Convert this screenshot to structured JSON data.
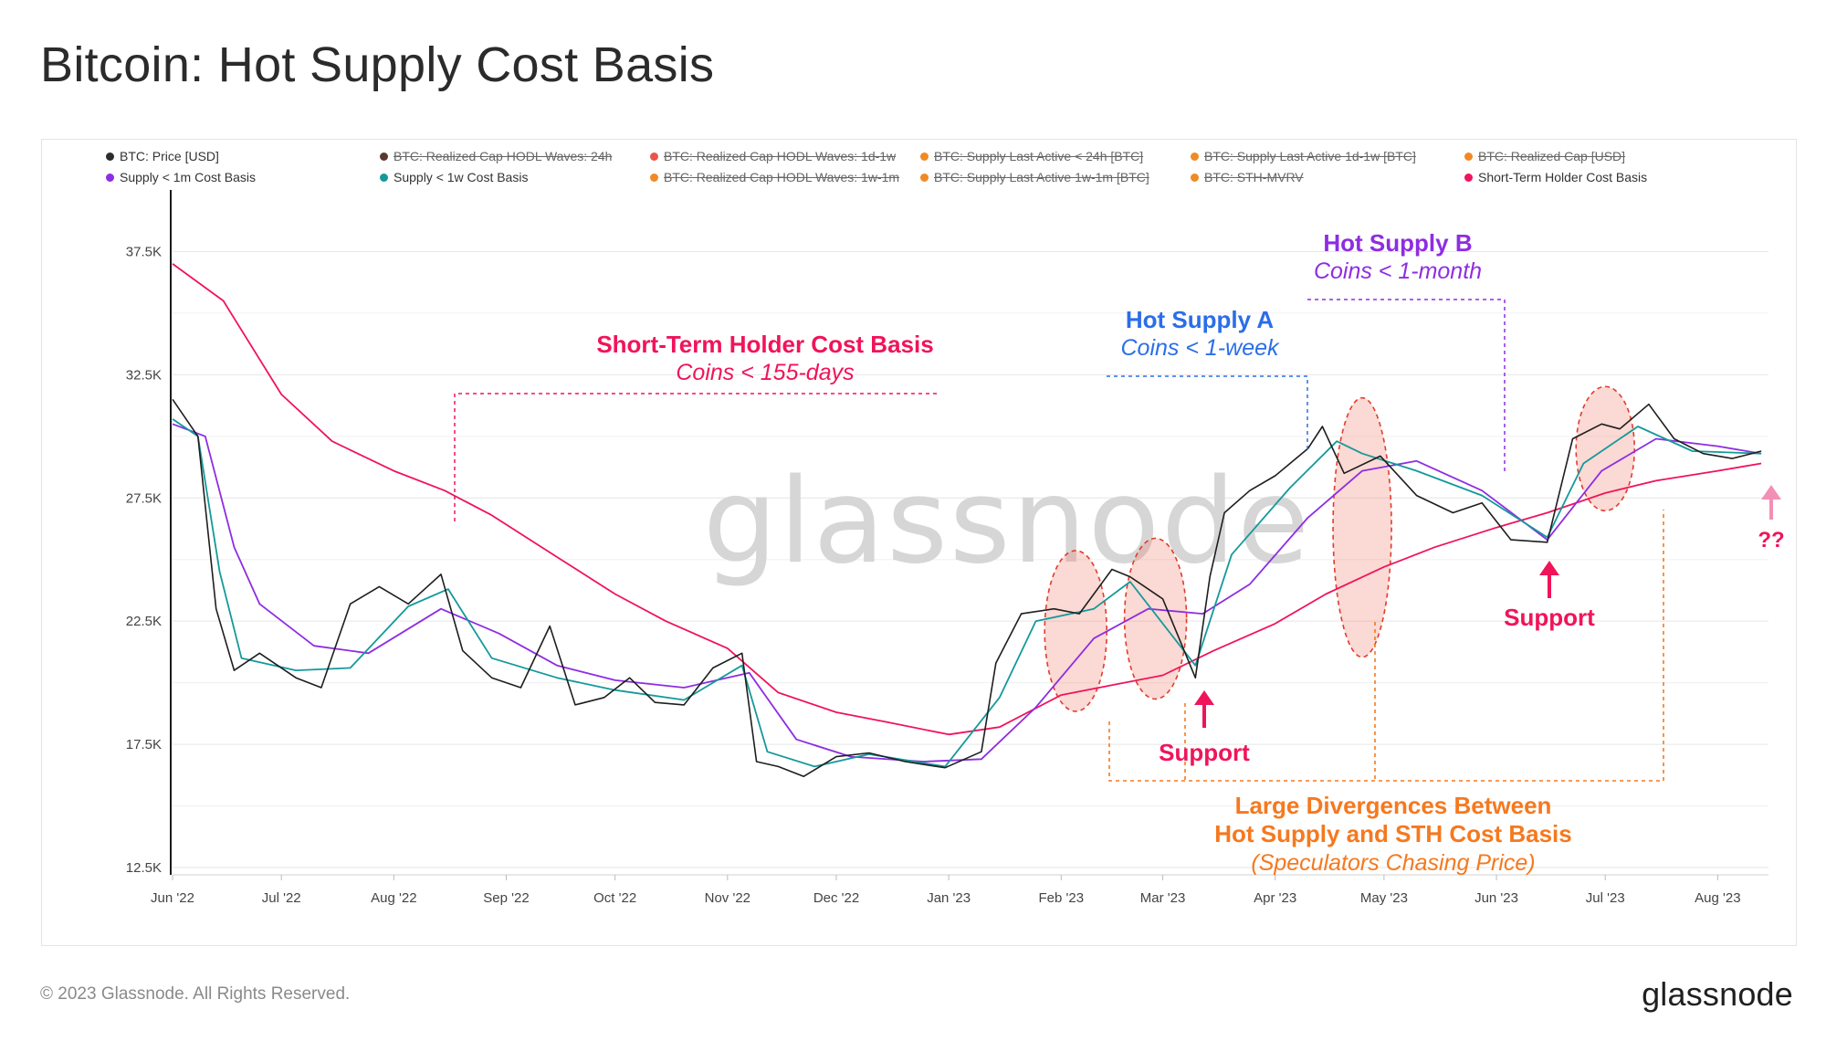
{
  "title": "Bitcoin: Hot Supply Cost Basis",
  "footer": {
    "copyright": "© 2023 Glassnode. All Rights Reserved.",
    "logo": "glassnode"
  },
  "watermark": "glassnode",
  "legend": [
    {
      "label": "BTC: Price [USD]",
      "color": "#2d2d2d",
      "active": true
    },
    {
      "label": "BTC: Realized Cap HODL Waves: 24h",
      "color": "#5a3a2e",
      "active": false
    },
    {
      "label": "BTC: Realized Cap HODL Waves: 1d-1w",
      "color": "#e8564a",
      "active": false
    },
    {
      "label": "BTC: Supply Last Active < 24h [BTC]",
      "color": "#f08a24",
      "active": false
    },
    {
      "label": "BTC: Supply Last Active 1d-1w [BTC]",
      "color": "#f08a24",
      "active": false
    },
    {
      "label": "BTC: Realized Cap [USD]",
      "color": "#f08a24",
      "active": false
    },
    {
      "label": "Supply < 1m Cost Basis",
      "color": "#8e2de2",
      "active": true
    },
    {
      "label": "Supply < 1w Cost Basis",
      "color": "#14999b",
      "active": true
    },
    {
      "label": "BTC: Realized Cap HODL Waves: 1w-1m",
      "color": "#f08a24",
      "active": false
    },
    {
      "label": "BTC: Supply Last Active 1w-1m [BTC]",
      "color": "#f08a24",
      "active": false
    },
    {
      "label": "BTC: STH-MVRV",
      "color": "#f08a24",
      "active": false
    },
    {
      "label": "Short-Term Holder Cost Basis",
      "color": "#f0145a",
      "active": true
    }
  ],
  "annotations": {
    "sth_title": "Short-Term Holder Cost Basis",
    "sth_sub": "Coins < 155-days",
    "hot_a_title": "Hot Supply A",
    "hot_a_sub": "Coins < 1-week",
    "hot_b_title": "Hot Supply B",
    "hot_b_sub": "Coins < 1-month",
    "support_1": "Support",
    "support_2": "Support",
    "question": "??",
    "div_line1": "Large Divergences Between",
    "div_line2": "Hot Supply and STH Cost Basis",
    "div_line3": "(Speculators Chasing Price)"
  },
  "colors": {
    "price": "#1e1e1e",
    "supply_1m": "#8e2de2",
    "supply_1w": "#14999b",
    "sth": "#f0145a",
    "hot_a": "#2a6ee8",
    "divergence": "#f5791f",
    "grid": "#e6e6e6"
  },
  "chart_data": {
    "type": "line",
    "title": "Bitcoin: Hot Supply Cost Basis",
    "ylim": [
      12500,
      40000
    ],
    "y_ticks": [
      "12.5K",
      "17.5K",
      "22.5K",
      "27.5K",
      "32.5K",
      "37.5K"
    ],
    "x_ticks": [
      "Jun '22",
      "Jul '22",
      "Aug '22",
      "Sep '22",
      "Oct '22",
      "Nov '22",
      "Dec '22",
      "Jan '23",
      "Feb '23",
      "Mar '23",
      "Apr '23",
      "May '23",
      "Jun '23",
      "Jul '23",
      "Aug '23"
    ],
    "grid": true,
    "legend_position": "top",
    "series": [
      {
        "name": "BTC: Price [USD]",
        "x": [
          "2022-06-01",
          "2022-06-08",
          "2022-06-13",
          "2022-06-18",
          "2022-06-25",
          "2022-07-05",
          "2022-07-12",
          "2022-07-20",
          "2022-07-28",
          "2022-08-05",
          "2022-08-14",
          "2022-08-20",
          "2022-08-28",
          "2022-09-05",
          "2022-09-13",
          "2022-09-20",
          "2022-09-28",
          "2022-10-05",
          "2022-10-12",
          "2022-10-20",
          "2022-10-28",
          "2022-11-05",
          "2022-11-09",
          "2022-11-15",
          "2022-11-22",
          "2022-12-01",
          "2022-12-10",
          "2022-12-20",
          "2022-12-31",
          "2023-01-10",
          "2023-01-14",
          "2023-01-21",
          "2023-01-30",
          "2023-02-06",
          "2023-02-15",
          "2023-02-20",
          "2023-03-01",
          "2023-03-10",
          "2023-03-14",
          "2023-03-18",
          "2023-03-25",
          "2023-04-01",
          "2023-04-10",
          "2023-04-14",
          "2023-04-20",
          "2023-04-30",
          "2023-05-10",
          "2023-05-20",
          "2023-05-28",
          "2023-06-05",
          "2023-06-15",
          "2023-06-22",
          "2023-06-30",
          "2023-07-05",
          "2023-07-13",
          "2023-07-20",
          "2023-07-28",
          "2023-08-05",
          "2023-08-13"
        ],
        "values": [
          31500,
          30000,
          23000,
          20500,
          21200,
          20200,
          19800,
          23200,
          23900,
          23200,
          24400,
          21300,
          20200,
          19800,
          22300,
          19100,
          19400,
          20200,
          19200,
          19100,
          20600,
          21200,
          16800,
          16600,
          16200,
          17000,
          17150,
          16800,
          16550,
          17200,
          20800,
          22800,
          23000,
          22800,
          24600,
          24300,
          23400,
          20200,
          24300,
          26900,
          27800,
          28400,
          29500,
          30400,
          28500,
          29200,
          27600,
          26900,
          27300,
          25800,
          25700,
          29900,
          30500,
          30300,
          31300,
          29900,
          29300,
          29100,
          29400
        ]
      },
      {
        "name": "Supply < 1m Cost Basis",
        "x": [
          "2022-06-01",
          "2022-06-10",
          "2022-06-18",
          "2022-06-25",
          "2022-07-10",
          "2022-07-25",
          "2022-08-14",
          "2022-08-30",
          "2022-09-15",
          "2022-10-01",
          "2022-10-20",
          "2022-11-07",
          "2022-11-20",
          "2022-12-05",
          "2022-12-25",
          "2023-01-10",
          "2023-01-25",
          "2023-02-10",
          "2023-02-25",
          "2023-03-12",
          "2023-03-25",
          "2023-04-10",
          "2023-04-25",
          "2023-05-10",
          "2023-05-28",
          "2023-06-15",
          "2023-06-30",
          "2023-07-15",
          "2023-08-01",
          "2023-08-13"
        ],
        "values": [
          30500,
          30000,
          25500,
          23200,
          21500,
          21200,
          23000,
          22000,
          20700,
          20100,
          19800,
          20400,
          17700,
          17000,
          16800,
          16900,
          19000,
          21800,
          23000,
          22800,
          24000,
          26700,
          28600,
          29000,
          27800,
          25800,
          28600,
          29900,
          29600,
          29300
        ]
      },
      {
        "name": "Supply < 1w Cost Basis",
        "x": [
          "2022-06-01",
          "2022-06-08",
          "2022-06-14",
          "2022-06-20",
          "2022-07-05",
          "2022-07-20",
          "2022-08-05",
          "2022-08-16",
          "2022-08-28",
          "2022-09-15",
          "2022-10-01",
          "2022-10-20",
          "2022-11-05",
          "2022-11-12",
          "2022-11-25",
          "2022-12-10",
          "2022-12-31",
          "2023-01-15",
          "2023-01-25",
          "2023-02-10",
          "2023-02-20",
          "2023-03-10",
          "2023-03-20",
          "2023-04-05",
          "2023-04-18",
          "2023-04-25",
          "2023-05-10",
          "2023-05-28",
          "2023-06-15",
          "2023-06-25",
          "2023-07-10",
          "2023-07-25",
          "2023-08-13"
        ],
        "values": [
          30700,
          30000,
          24500,
          21000,
          20500,
          20600,
          23100,
          23800,
          21000,
          20200,
          19700,
          19300,
          20700,
          17200,
          16600,
          17100,
          16600,
          19400,
          22500,
          23000,
          24100,
          20700,
          25200,
          27900,
          29800,
          29300,
          28600,
          27600,
          25900,
          28900,
          30400,
          29400,
          29300
        ]
      },
      {
        "name": "Short-Term Holder Cost Basis",
        "x": [
          "2022-06-01",
          "2022-06-15",
          "2022-07-01",
          "2022-07-15",
          "2022-08-01",
          "2022-08-15",
          "2022-08-28",
          "2022-09-15",
          "2022-10-01",
          "2022-10-15",
          "2022-11-01",
          "2022-11-15",
          "2022-12-01",
          "2022-12-15",
          "2023-01-01",
          "2023-01-15",
          "2023-02-01",
          "2023-02-15",
          "2023-03-01",
          "2023-03-15",
          "2023-04-01",
          "2023-04-15",
          "2023-05-01",
          "2023-05-15",
          "2023-06-01",
          "2023-06-15",
          "2023-07-01",
          "2023-07-15",
          "2023-08-01",
          "2023-08-13"
        ],
        "values": [
          37000,
          35500,
          31700,
          29800,
          28600,
          27800,
          26800,
          25100,
          23600,
          22500,
          21400,
          19600,
          18800,
          18400,
          17900,
          18200,
          19500,
          19900,
          20300,
          21300,
          22400,
          23600,
          24700,
          25500,
          26300,
          26900,
          27700,
          28200,
          28600,
          28900
        ]
      }
    ]
  }
}
